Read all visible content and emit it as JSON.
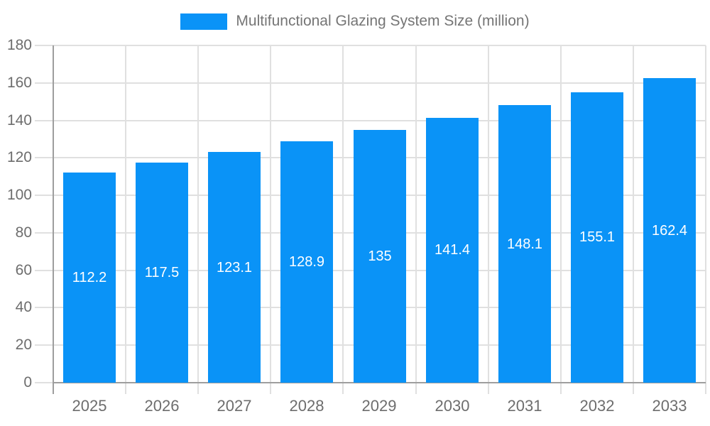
{
  "legend": {
    "label": "Multifunctional Glazing System Size (million)"
  },
  "chart_data": {
    "type": "bar",
    "title": "Multifunctional Glazing System Size (million)",
    "xlabel": "",
    "ylabel": "",
    "categories": [
      "2025",
      "2026",
      "2027",
      "2028",
      "2029",
      "2030",
      "2031",
      "2032",
      "2033"
    ],
    "values": [
      112.2,
      117.5,
      123.1,
      128.9,
      135,
      141.4,
      148.1,
      155.1,
      162.4
    ],
    "value_labels": [
      "112.2",
      "117.5",
      "123.1",
      "128.9",
      "135",
      "141.4",
      "148.1",
      "155.1",
      "162.4"
    ],
    "ylim": [
      0,
      180
    ],
    "yticks": [
      0,
      20,
      40,
      60,
      80,
      100,
      120,
      140,
      160,
      180
    ],
    "grid": true,
    "legend_position": "top",
    "colors": {
      "bar": "#0a93f7",
      "grid": "#e0e0e0",
      "axis": "#9e9e9e",
      "tick_label": "#6d6d6d",
      "legend_text": "#757575",
      "bar_label": "#ffffff",
      "background": "#ffffff"
    }
  }
}
